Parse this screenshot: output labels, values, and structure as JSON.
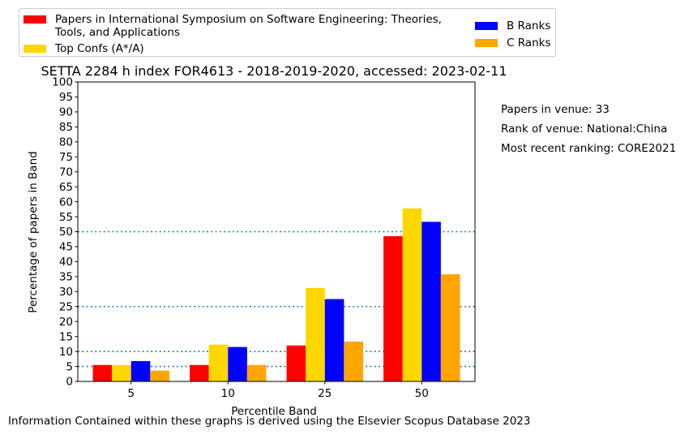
{
  "chart_data": {
    "type": "bar",
    "title": "SETTA 2284 h index FOR4613 - 2018-2019-2020, accessed: 2023-02-11",
    "xlabel": "Percentile Band",
    "ylabel": "Percentage of papers in Band",
    "categories": [
      "5",
      "10",
      "25",
      "50"
    ],
    "ylim": [
      0,
      100
    ],
    "yticks": [
      "0",
      "5",
      "10",
      "15",
      "20",
      "25",
      "30",
      "35",
      "40",
      "45",
      "50",
      "55",
      "60",
      "65",
      "70",
      "75",
      "80",
      "85",
      "90",
      "95",
      "100"
    ],
    "reference_lines": [
      5,
      10,
      25,
      50
    ],
    "series": [
      {
        "name": "Papers in International Symposium on Software Engineering: Theories, Tools, and Applications",
        "color": "#ff0000",
        "values": [
          5.5,
          5.5,
          12.0,
          48.5
        ]
      },
      {
        "name": "Top Confs (A*/A)",
        "color": "#ffd700",
        "values": [
          5.5,
          12.3,
          31.2,
          57.8
        ]
      },
      {
        "name": "B Ranks",
        "color": "#0000ff",
        "values": [
          6.8,
          11.5,
          27.5,
          53.3
        ]
      },
      {
        "name": "C Ranks",
        "color": "#ffa500",
        "values": [
          3.6,
          5.5,
          13.3,
          35.8
        ]
      }
    ],
    "legend_placement": "top"
  },
  "legend": {
    "red_label_line1": "Papers in International Symposium on Software Engineering: Theories,",
    "red_label_line2": "Tools, and Applications",
    "gold_label": "Top Confs (A*/A)",
    "blue_label": "B Ranks",
    "orange_label": "C Ranks"
  },
  "info": {
    "papers": "Papers in venue: 33",
    "rank": "Rank of venue: National:China",
    "recent": "Most recent ranking: CORE2021"
  },
  "footer": "Information Contained within these graphs is derived using the Elsevier Scopus Database 2023"
}
